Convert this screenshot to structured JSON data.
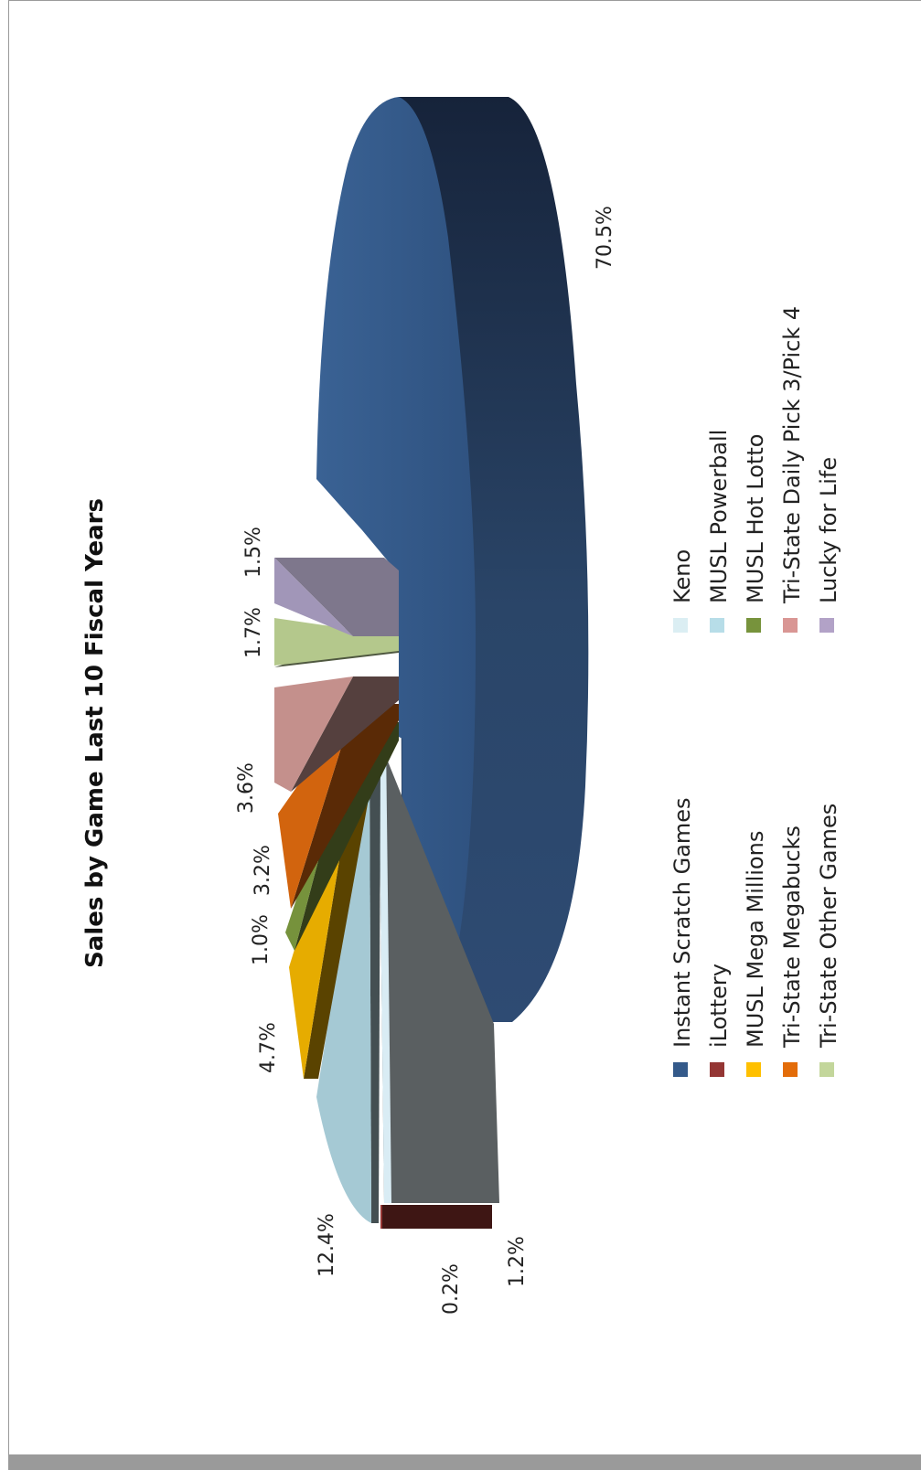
{
  "chart_data": {
    "type": "pie",
    "title": "Sales by Game Last 10 Fiscal Years",
    "slices": [
      {
        "name": "Instant Scratch Games",
        "value": 70.5,
        "label": "70.5%",
        "color": "#345a8a",
        "side_color": "#1c2c44"
      },
      {
        "name": "iLottery",
        "value": 0.2,
        "label": "0.2%",
        "color": "#943634",
        "side_color": "#3e1614"
      },
      {
        "name": "Keno",
        "value": 1.2,
        "label": "1.2%",
        "color": "#d9ecf4",
        "side_color": "#5a5f61"
      },
      {
        "name": "MUSL Powerball",
        "value": 12.4,
        "label": "12.4%",
        "color": "#a5c9d4",
        "side_color": "#444f52"
      },
      {
        "name": "MUSL Mega Millions",
        "value": 4.7,
        "label": "4.7%",
        "color": "#e6ac00",
        "side_color": "#5a4300"
      },
      {
        "name": "MUSL Hot Lotto",
        "value": 1.0,
        "label": "1.0%",
        "color": "#76923c",
        "side_color": "#333d19"
      },
      {
        "name": "Tri-State Megabucks",
        "value": 3.2,
        "label": "3.2%",
        "color": "#d2640e",
        "side_color": "#5a2a06"
      },
      {
        "name": "Tri-State Daily Pick 3/Pick 4",
        "value": 3.6,
        "label": "3.6%",
        "color": "#c4908c",
        "side_color": "#55403e"
      },
      {
        "name": "Tri-State Other Games",
        "value": 1.7,
        "label": "1.7%",
        "color": "#b4c88c",
        "side_color": "#4f5840"
      },
      {
        "name": "Lucky for Life",
        "value": 1.5,
        "label": "1.5%",
        "color": "#a196b8",
        "side_color": "#7e778c"
      }
    ],
    "legend": {
      "position": "bottom",
      "items": [
        {
          "name": "Instant Scratch Games",
          "color": "#345a8a"
        },
        {
          "name": "iLottery",
          "color": "#943634"
        },
        {
          "name": "MUSL Mega Millions",
          "color": "#ffc000"
        },
        {
          "name": "Tri-State Megabucks",
          "color": "#e36c09"
        },
        {
          "name": "Tri-State Other Games",
          "color": "#c3d69b"
        },
        {
          "name": "Keno",
          "color": "#dbeef3"
        },
        {
          "name": "MUSL Powerball",
          "color": "#b7dde8"
        },
        {
          "name": "MUSL Hot Lotto",
          "color": "#77933c"
        },
        {
          "name": "Tri-State Daily Pick 3/Pick 4",
          "color": "#d99694"
        },
        {
          "name": "Lucky for Life",
          "color": "#b2a2c7"
        }
      ]
    },
    "style": "3d-exploded",
    "orientation": "rotated-90-ccw"
  }
}
